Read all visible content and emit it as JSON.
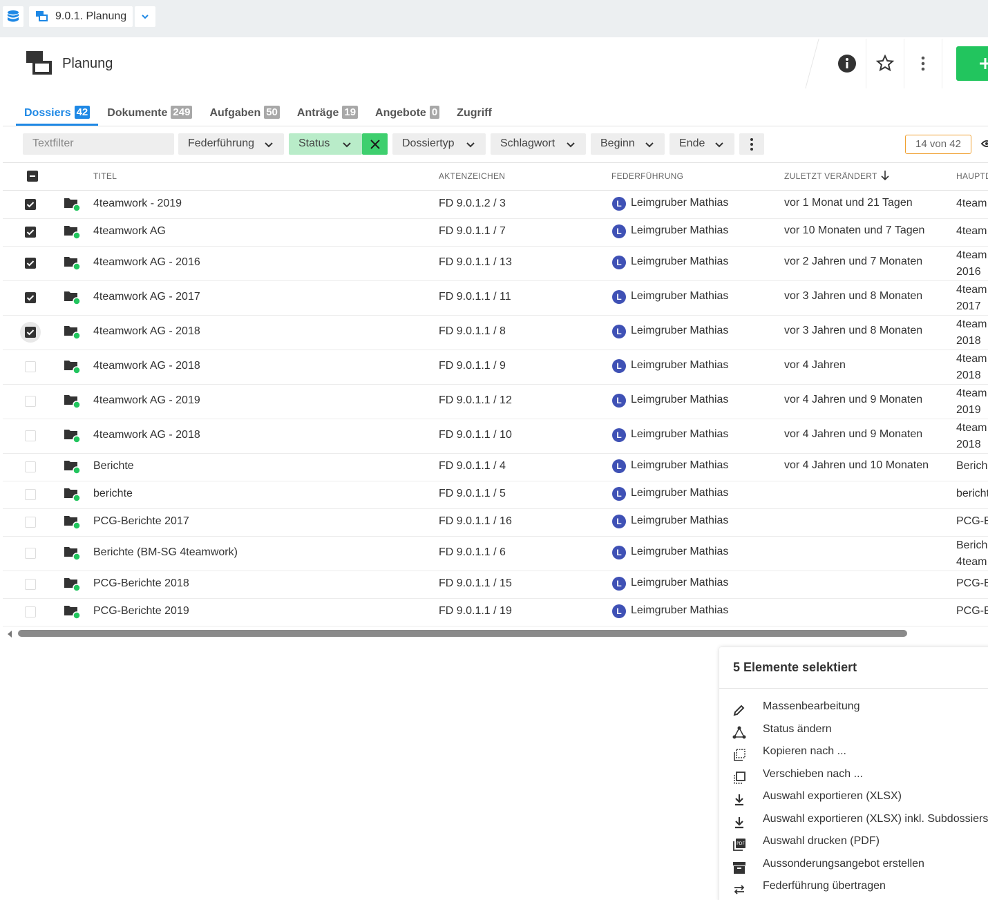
{
  "breadcrumb": {
    "label": "9.0.1. Planung"
  },
  "header": {
    "title": "Planung"
  },
  "tabs": [
    {
      "label": "Dossiers",
      "count": 42,
      "active": true
    },
    {
      "label": "Dokumente",
      "count": 249
    },
    {
      "label": "Aufgaben",
      "count": 50
    },
    {
      "label": "Anträge",
      "count": 19
    },
    {
      "label": "Angebote",
      "count": 0
    },
    {
      "label": "Zugriff"
    }
  ],
  "filters": {
    "textfilter": "Textfilter",
    "items": [
      {
        "label": "Federführung"
      },
      {
        "label": "Status",
        "active": true
      },
      {
        "label": "Dossiertyp"
      },
      {
        "label": "Schlagwort"
      },
      {
        "label": "Beginn"
      },
      {
        "label": "Ende"
      }
    ],
    "counter": "14 von 42"
  },
  "table": {
    "columns": [
      "TITEL",
      "AKTENZEICHEN",
      "FEDERFÜHRUNG",
      "ZULETZT VERÄNDERT",
      "HAUPTD"
    ],
    "rows": [
      {
        "checked": true,
        "title": "4teamwork - 2019",
        "reference": "FD 9.0.1.2 / 3",
        "initial": "L",
        "owner": "Leimgruber Mathias",
        "changed": "vor 1 Monat und 21 Tagen",
        "main": "4team"
      },
      {
        "checked": true,
        "title": "4teamwork AG",
        "reference": "FD 9.0.1.1 / 7",
        "initial": "L",
        "owner": "Leimgruber Mathias",
        "changed": "vor 10 Monaten und 7 Tagen",
        "main": "4team"
      },
      {
        "checked": true,
        "title": "4teamwork AG - 2016",
        "reference": "FD 9.0.1.1 / 13",
        "initial": "L",
        "owner": "Leimgruber Mathias",
        "changed": "vor 2 Jahren und 7 Monaten",
        "main": "4team\n2016"
      },
      {
        "checked": true,
        "title": "4teamwork AG - 2017",
        "reference": "FD 9.0.1.1 / 11",
        "initial": "L",
        "owner": "Leimgruber Mathias",
        "changed": "vor 3 Jahren und 8 Monaten",
        "main": "4team\n2017"
      },
      {
        "checked": true,
        "title": "4teamwork AG - 2018",
        "reference": "FD 9.0.1.1 / 8",
        "initial": "L",
        "owner": "Leimgruber Mathias",
        "changed": "vor 3 Jahren und 8 Monaten",
        "main": "4team\n2018"
      },
      {
        "checked": false,
        "title": "4teamwork AG - 2018",
        "reference": "FD 9.0.1.1 / 9",
        "initial": "L",
        "owner": "Leimgruber Mathias",
        "changed": "vor 4 Jahren",
        "main": "4team\n2018"
      },
      {
        "checked": false,
        "title": "4teamwork AG - 2019",
        "reference": "FD 9.0.1.1 / 12",
        "initial": "L",
        "owner": "Leimgruber Mathias",
        "changed": "vor 4 Jahren und 9 Monaten",
        "main": "4team\n2019"
      },
      {
        "checked": false,
        "title": "4teamwork AG - 2018",
        "reference": "FD 9.0.1.1 / 10",
        "initial": "L",
        "owner": "Leimgruber Mathias",
        "changed": "vor 4 Jahren und 9 Monaten",
        "main": "4team\n2018"
      },
      {
        "checked": false,
        "title": "Berichte",
        "reference": "FD 9.0.1.1 / 4",
        "initial": "L",
        "owner": "Leimgruber Mathias",
        "changed": "vor 4 Jahren und 10 Monaten",
        "main": "Berich"
      },
      {
        "checked": false,
        "title": "berichte",
        "reference": "FD 9.0.1.1 / 5",
        "initial": "L",
        "owner": "Leimgruber Mathias",
        "changed": null,
        "main": "bericht"
      },
      {
        "checked": false,
        "title": "PCG-Berichte 2017",
        "reference": "FD 9.0.1.1 / 16",
        "initial": "L",
        "owner": "Leimgruber Mathias",
        "changed": null,
        "main": "PCG-B"
      },
      {
        "checked": false,
        "title": "Berichte (BM-SG 4teamwork)",
        "reference": "FD 9.0.1.1 / 6",
        "initial": "L",
        "owner": "Leimgruber Mathias",
        "changed": null,
        "main": "Berich\n4team"
      },
      {
        "checked": false,
        "title": "PCG-Berichte 2018",
        "reference": "FD 9.0.1.1 / 15",
        "initial": "L",
        "owner": "Leimgruber Mathias",
        "changed": null,
        "main": "PCG-B"
      },
      {
        "checked": false,
        "title": "PCG-Berichte 2019",
        "reference": "FD 9.0.1.1 / 19",
        "initial": "L",
        "owner": "Leimgruber Mathias",
        "changed": null,
        "main": "PCG-B"
      }
    ]
  },
  "selection_panel": {
    "title": "5 Elemente selektiert",
    "actions": [
      "Massenbearbeitung",
      "Status ändern",
      "Kopieren nach ...",
      "Verschieben nach ...",
      "Auswahl exportieren (XLSX)",
      "Auswahl exportieren (XLSX) inkl. Subdossiers",
      "Auswahl drucken (PDF)",
      "Aussonderungsangebot erstellen",
      "Federführung übertragen"
    ]
  }
}
